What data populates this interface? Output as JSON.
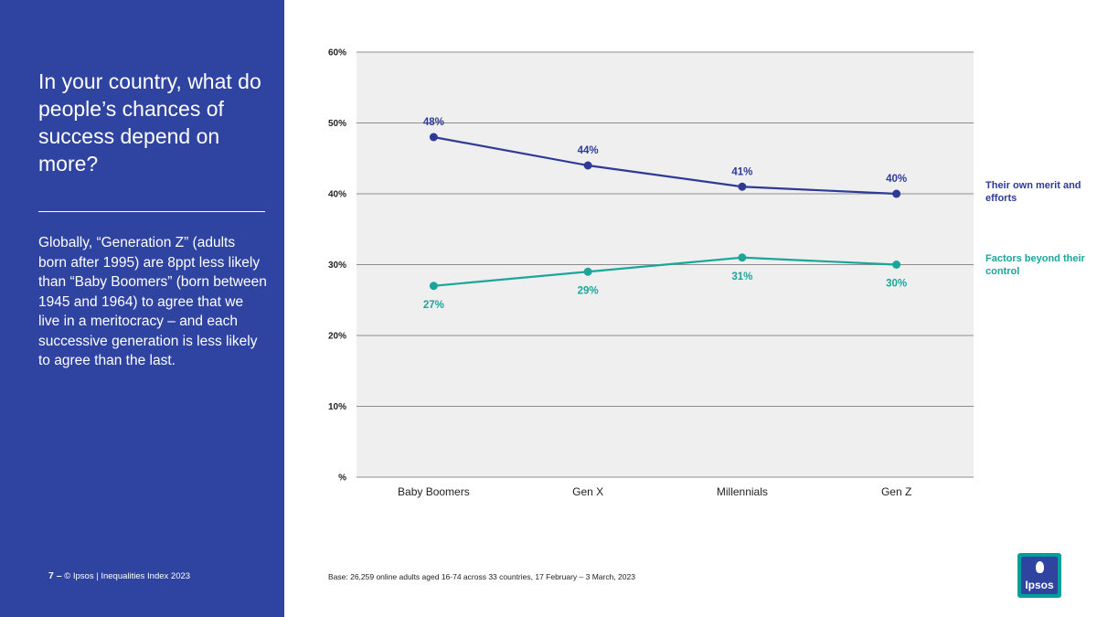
{
  "panel": {
    "question": "In your country, what do people’s chances of success depend on more?",
    "summary": "Globally, “Generation Z” (adults born after 1995) are 8ppt less likely than “Baby Boomers” (born between 1945 and 1964) to agree that we live in a meritocracy – and each successive generation is less likely to agree than the last.",
    "page_number": "7 –",
    "footer": "© Ipsos | Inequalities Index 2023"
  },
  "base_note": "Base: 26,259 online adults aged 16-74 across 33 countries, 17 February – 3 March, 2023",
  "logo_text": "Ipsos",
  "colors": {
    "panel_bg": "#2f44a0",
    "merit": "#2f3a97",
    "control": "#1aa69a",
    "plot_bg": "#efefef",
    "grid": "#8c8c8c"
  },
  "chart_data": {
    "type": "line",
    "categories": [
      "Baby Boomers",
      "Gen X",
      "Millennials",
      "Gen Z"
    ],
    "ylim": [
      0,
      60
    ],
    "yticks": [
      0,
      10,
      20,
      30,
      40,
      50,
      60
    ],
    "ytick_labels": [
      "%",
      "10%",
      "20%",
      "30%",
      "40%",
      "50%",
      "60%"
    ],
    "series": [
      {
        "name": "Their own merit and efforts",
        "values": [
          48,
          44,
          41,
          40
        ],
        "labels": [
          "48%",
          "44%",
          "41%",
          "40%"
        ],
        "label_position": "above"
      },
      {
        "name": "Factors beyond their control",
        "values": [
          27,
          29,
          31,
          30
        ],
        "labels": [
          "27%",
          "29%",
          "31%",
          "30%"
        ],
        "label_position": "below"
      }
    ]
  }
}
